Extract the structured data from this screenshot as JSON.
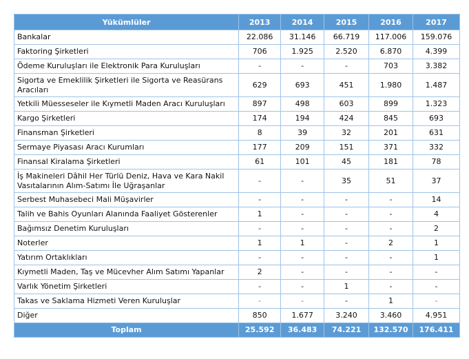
{
  "table": {
    "headers": [
      "Yükümlüler",
      "2013",
      "2014",
      "2015",
      "2016",
      "2017"
    ],
    "rows": [
      {
        "label": "Bankalar",
        "values": [
          "22.086",
          "31.146",
          "66.719",
          "117.006",
          "159.076"
        ]
      },
      {
        "label": "Faktoring Şirketleri",
        "values": [
          "706",
          "1.925",
          "2.520",
          "6.870",
          "4.399"
        ]
      },
      {
        "label": "Ödeme Kuruluşları ile Elektronik Para Kuruluşları",
        "values": [
          "-",
          "-",
          "-",
          "703",
          "3.382"
        ]
      },
      {
        "label": "Sigorta ve Emeklilik Şirketleri ile Sigorta ve Reasürans Aracıları",
        "values": [
          "629",
          "693",
          "451",
          "1.980",
          "1.487"
        ],
        "double": true
      },
      {
        "label": "Yetkili Müesseseler  ile Kıymetli Maden Aracı Kuruluşları",
        "values": [
          "897",
          "498",
          "603",
          "899",
          "1.323"
        ]
      },
      {
        "label": "Kargo Şirketleri",
        "values": [
          "174",
          "194",
          "424",
          "845",
          "693"
        ]
      },
      {
        "label": "Finansman Şirketleri",
        "values": [
          "8",
          "39",
          "32",
          "201",
          "631"
        ]
      },
      {
        "label": "Sermaye Piyasası Aracı Kurumları",
        "values": [
          "177",
          "209",
          "151",
          "371",
          "332"
        ]
      },
      {
        "label": "Finansal Kiralama Şirketleri",
        "values": [
          "61",
          "101",
          "45",
          "181",
          "78"
        ]
      },
      {
        "label": "İş Makineleri Dâhil Her Türlü Deniz, Hava ve Kara Nakil Vasıtalarının Alım-Satımı İle Uğraşanlar",
        "values": [
          "-",
          "-",
          "35",
          "51",
          "37"
        ],
        "double": true
      },
      {
        "label": "Serbest Muhasebeci Mali Müşavirler",
        "values": [
          "-",
          "-",
          "-",
          "-",
          "14"
        ]
      },
      {
        "label": "Talih ve Bahis Oyunları Alanında Faaliyet Gösterenler",
        "values": [
          "1",
          "-",
          "-",
          "-",
          "4"
        ]
      },
      {
        "label": "Bağımsız Denetim Kuruluşları",
        "values": [
          "-",
          "-",
          "-",
          "-",
          "2"
        ]
      },
      {
        "label": "Noterler",
        "values": [
          "1",
          "1",
          "-",
          "2",
          "1"
        ]
      },
      {
        "label": "Yatırım Ortaklıkları",
        "values": [
          "-",
          "-",
          "-",
          "-",
          "1"
        ]
      },
      {
        "label": "Kıymetli Maden, Taş ve Mücevher Alım Satımı Yapanlar",
        "values": [
          "2",
          "-",
          "-",
          "-",
          "-"
        ]
      },
      {
        "label": "Varlık Yönetim Şirketleri",
        "values": [
          "-",
          "-",
          "1",
          "-",
          "-"
        ]
      },
      {
        "label": "Takas ve Saklama Hizmeti Veren Kuruluşlar",
        "values": [
          "-",
          "-",
          "-",
          "1",
          "-"
        ],
        "red_cells": [
          0,
          1,
          4
        ]
      },
      {
        "label": "Diğer",
        "values": [
          "850",
          "1.677",
          "3.240",
          "3.460",
          "4.951"
        ]
      }
    ],
    "total": {
      "label": "Toplam",
      "values": [
        "25.592",
        "36.483",
        "74.221",
        "132.570",
        "176.411"
      ]
    }
  },
  "colors": {
    "header": "#5b9bd5",
    "border": "#9dc3e6",
    "red_dash": "#e05050"
  }
}
